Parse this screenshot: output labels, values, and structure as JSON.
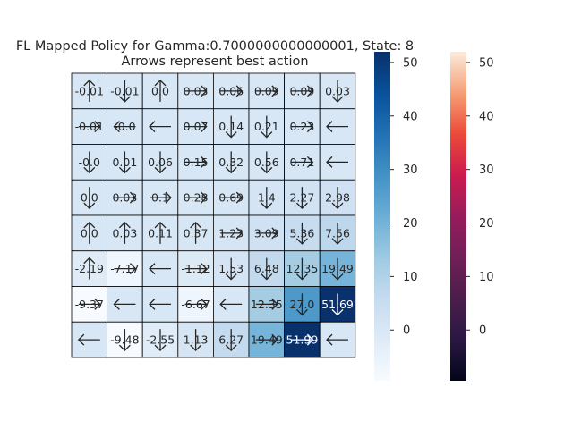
{
  "chart_data": {
    "type": "heatmap",
    "title": "FL Mapped Policy for Gamma:0.7000000000000001, State: 8",
    "subtitle": "Arrows represent best action",
    "rows": 8,
    "cols": 8,
    "values": [
      [
        -0.01,
        -0.01,
        0.0,
        0.03,
        0.06,
        0.09,
        0.09,
        0.03
      ],
      [
        -0.01,
        -0.0,
        -0.0,
        0.07,
        0.14,
        0.21,
        0.23,
        -0.0
      ],
      [
        -0.0,
        0.01,
        0.06,
        0.15,
        0.32,
        0.56,
        0.71,
        -0.0
      ],
      [
        0.0,
        0.03,
        0.1,
        0.28,
        0.69,
        1.4,
        2.27,
        2.98
      ],
      [
        0.0,
        0.03,
        0.11,
        0.37,
        1.23,
        3.09,
        5.36,
        7.56
      ],
      [
        -2.19,
        -7.17,
        -0.0,
        -1.12,
        1.53,
        6.48,
        12.35,
        19.49
      ],
      [
        -9.37,
        -0.0,
        -0.0,
        -6.67,
        -0.0,
        12.35,
        27.0,
        51.69
      ],
      [
        -0.0,
        -9.48,
        -2.55,
        1.13,
        6.27,
        19.49,
        51.99,
        0.0
      ]
    ],
    "labels": [
      [
        "-0.01",
        "-0.01",
        "0.0",
        "0.03",
        "0.06",
        "0.09",
        "0.09",
        "0.03"
      ],
      [
        "-0.01",
        "-0.0",
        "",
        "0.07",
        "0.14",
        "0.21",
        "0.23",
        ""
      ],
      [
        "-0.0",
        "0.01",
        "0.06",
        "0.15",
        "0.32",
        "0.56",
        "0.71",
        ""
      ],
      [
        "0.0",
        "0.03",
        "0.1",
        "0.28",
        "0.69",
        "1.4",
        "2.27",
        "2.98"
      ],
      [
        "0.0",
        "0.03",
        "0.11",
        "0.37",
        "1.23",
        "3.09",
        "5.36",
        "7.56"
      ],
      [
        "-2.19",
        "-7.17",
        "",
        "-1.12",
        "1.53",
        "6.48",
        "12.35",
        "19.49"
      ],
      [
        "-9.37",
        "",
        "",
        "-6.67",
        "",
        "12.35",
        "27.0",
        "51.69"
      ],
      [
        "",
        "-9.48",
        "-2.55",
        "1.13",
        "6.27",
        "19.49",
        "51.99",
        ""
      ]
    ],
    "arrows": [
      [
        "up",
        "down",
        "up",
        "right",
        "right",
        "right",
        "right",
        "down"
      ],
      [
        "right",
        "left",
        "left",
        "right",
        "down",
        "down",
        "right",
        "left"
      ],
      [
        "down",
        "down",
        "down",
        "right",
        "down",
        "down",
        "right",
        "left"
      ],
      [
        "down",
        "right",
        "right",
        "right",
        "right",
        "down",
        "down",
        "down"
      ],
      [
        "up",
        "up",
        "up",
        "up",
        "right",
        "right",
        "down",
        "down"
      ],
      [
        "up",
        "right",
        "left",
        "right",
        "down",
        "down",
        "down",
        "down"
      ],
      [
        "right",
        "left",
        "left",
        "right",
        "left",
        "right",
        "down",
        "down"
      ],
      [
        "left",
        "down",
        "down",
        "down",
        "down",
        "right",
        "right",
        "left"
      ]
    ],
    "colorbars": [
      {
        "name": "Blues",
        "ticks": [
          0,
          10,
          20,
          30,
          40,
          50
        ],
        "range": [
          -9.48,
          51.99
        ]
      },
      {
        "name": "rocket",
        "ticks": [
          0,
          10,
          20,
          30,
          40,
          50
        ],
        "range": [
          -9.48,
          51.99
        ]
      }
    ],
    "grid": true
  }
}
